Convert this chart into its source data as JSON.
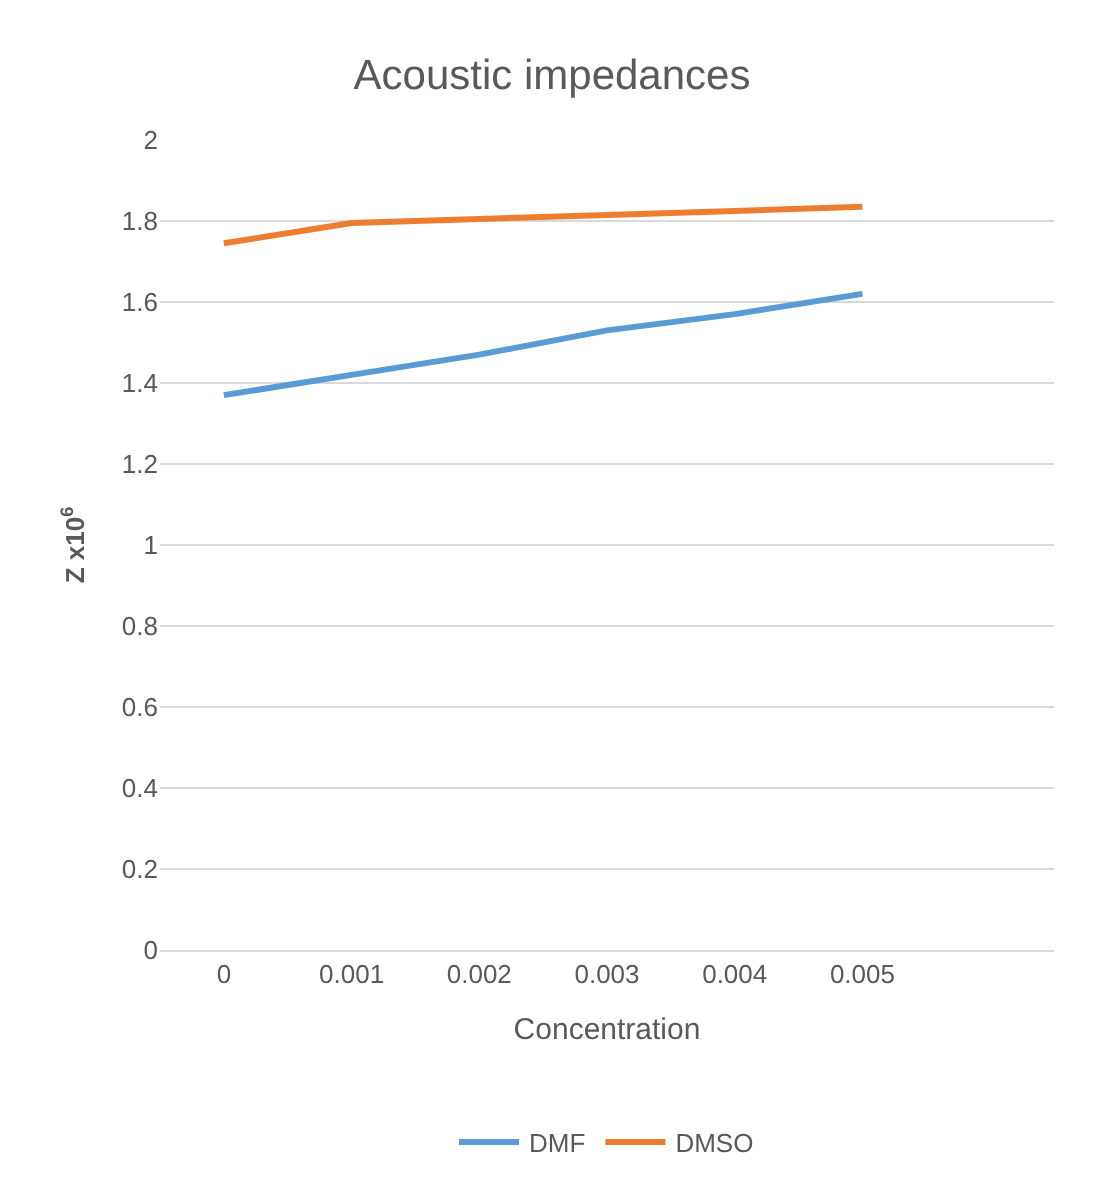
{
  "chart_data": {
    "type": "line",
    "title": "Acoustic impedances",
    "xlabel": "Concentration",
    "ylabel": "Z x10$^{6}$",
    "categories": [
      "0",
      "0.001",
      "0.002",
      "0.003",
      "0.004",
      "0.005",
      null
    ],
    "series": [
      {
        "name": "DMF",
        "color": "#5b9bd5",
        "values": [
          1.37,
          1.42,
          1.47,
          1.53,
          1.57,
          1.62,
          null
        ]
      },
      {
        "name": "DMSO",
        "color": "#ed7d31",
        "values": [
          1.745,
          1.795,
          1.805,
          1.815,
          1.825,
          1.835,
          null
        ]
      }
    ],
    "ylim": [
      0,
      2
    ],
    "yticks": [
      0,
      0.2,
      0.4,
      0.6,
      0.8,
      1,
      1.2,
      1.4,
      1.6,
      1.8,
      2
    ],
    "grid": "y",
    "legend": "bottom",
    "marker": "none",
    "line_style": "solid"
  }
}
